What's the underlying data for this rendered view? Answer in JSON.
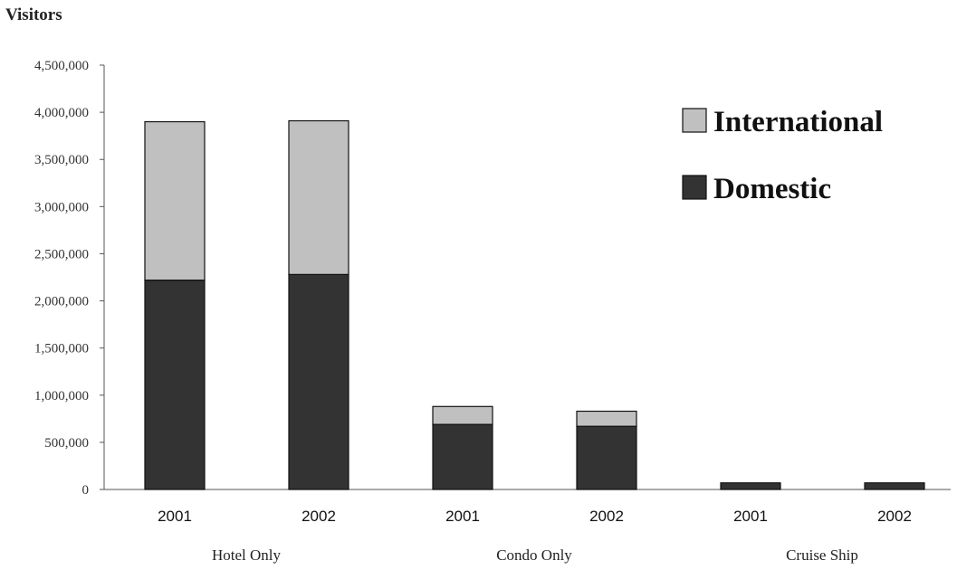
{
  "chart_data": {
    "type": "bar",
    "stacked": true,
    "title": "",
    "ylabel": "Visitors",
    "xlabel": "",
    "ylim": [
      0,
      4500000
    ],
    "yticks": [
      0,
      500000,
      1000000,
      1500000,
      2000000,
      2500000,
      3000000,
      3500000,
      4000000,
      4500000
    ],
    "ytick_labels": [
      "0",
      "500,000",
      "1,000,000",
      "1,500,000",
      "2,000,000",
      "2,500,000",
      "3,000,000",
      "3,500,000",
      "4,000,000",
      "4,500,000"
    ],
    "groups": [
      "Hotel Only",
      "Condo Only",
      "Cruise Ship"
    ],
    "categories": [
      "2001",
      "2002",
      "2001",
      "2002",
      "2001",
      "2002"
    ],
    "category_group": [
      0,
      0,
      1,
      1,
      2,
      2
    ],
    "series": [
      {
        "name": "Domestic",
        "color": "#333333",
        "values": [
          2220000,
          2280000,
          690000,
          670000,
          70000,
          70000
        ]
      },
      {
        "name": "International",
        "color": "#c0c0c0",
        "values": [
          1680000,
          1630000,
          190000,
          160000,
          0,
          0
        ]
      }
    ],
    "legend": {
      "placement": "top-right",
      "order": [
        "International",
        "Domestic"
      ]
    },
    "grid": false
  }
}
